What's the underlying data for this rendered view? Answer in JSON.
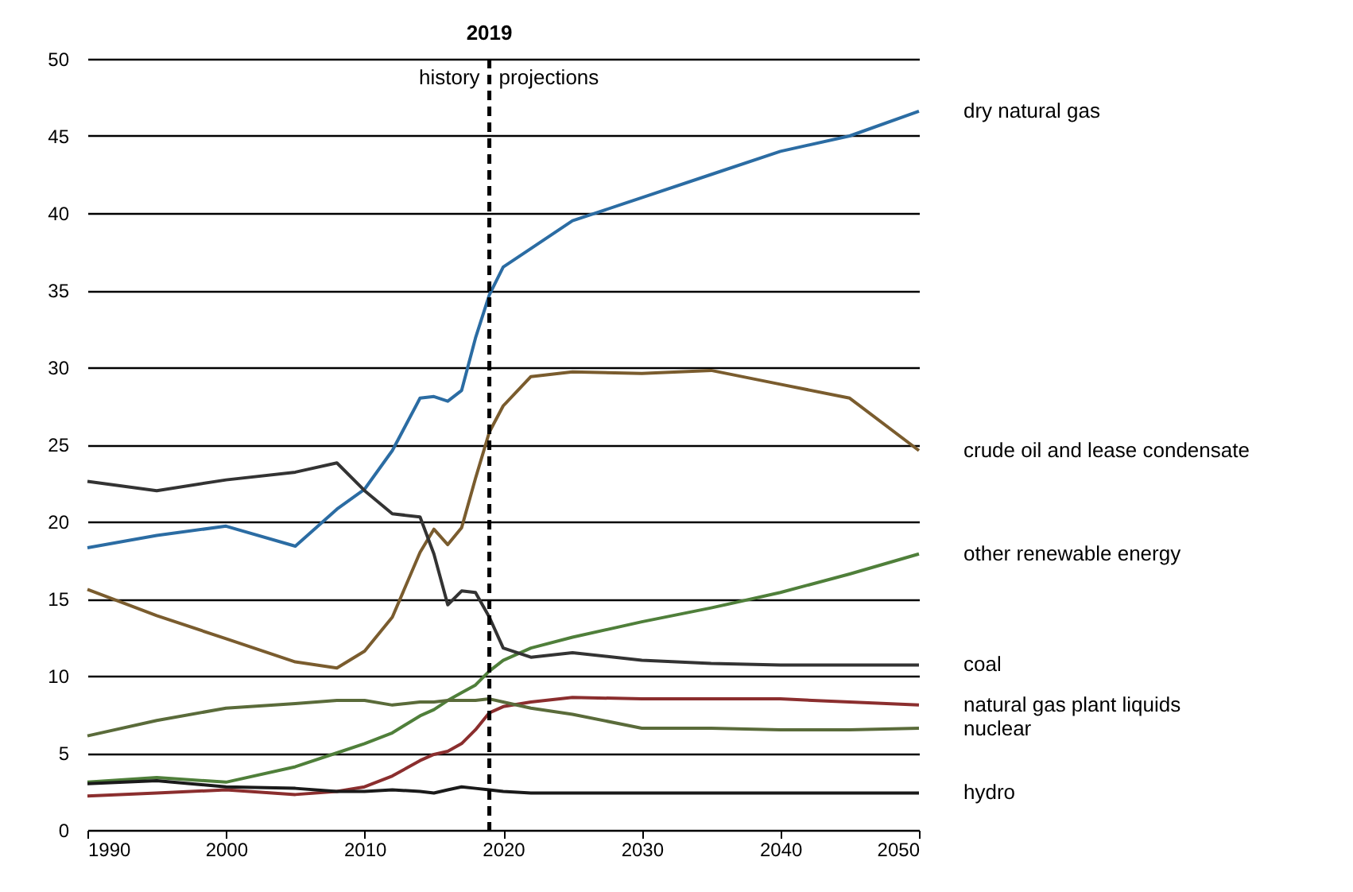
{
  "chart_data": {
    "type": "line",
    "x": [
      1990,
      1995,
      2000,
      2005,
      2008,
      2010,
      2012,
      2014,
      2015,
      2016,
      2017,
      2018,
      2019,
      2020,
      2022,
      2025,
      2030,
      2035,
      2040,
      2045,
      2050
    ],
    "series": [
      {
        "name": "dry natural gas",
        "color": "#2b6ca3",
        "values": [
          18.3,
          19.1,
          19.7,
          18.4,
          20.8,
          22.1,
          24.6,
          28.0,
          28.1,
          27.8,
          28.5,
          31.9,
          34.7,
          36.5,
          37.7,
          39.5,
          41.0,
          42.5,
          44.0,
          45.0,
          46.6
        ]
      },
      {
        "name": "crude oil and lease condensate",
        "color": "#7a5c2e",
        "values": [
          15.6,
          13.9,
          12.4,
          10.9,
          10.5,
          11.6,
          13.8,
          18.0,
          19.5,
          18.5,
          19.6,
          22.8,
          25.8,
          27.5,
          29.4,
          29.7,
          29.6,
          29.8,
          28.9,
          28.0,
          24.6
        ]
      },
      {
        "name": "other renewable energy",
        "color": "#4f7f3a",
        "values": [
          3.1,
          3.4,
          3.1,
          4.1,
          5.0,
          5.6,
          6.3,
          7.4,
          7.8,
          8.4,
          8.9,
          9.4,
          10.3,
          11.0,
          11.8,
          12.5,
          13.5,
          14.4,
          15.4,
          16.6,
          17.9
        ]
      },
      {
        "name": "coal",
        "color": "#333333",
        "values": [
          22.6,
          22.0,
          22.7,
          23.2,
          23.8,
          22.0,
          20.5,
          20.3,
          17.9,
          14.6,
          15.5,
          15.4,
          13.8,
          11.8,
          11.2,
          11.5,
          11.0,
          10.8,
          10.7,
          10.7,
          10.7
        ]
      },
      {
        "name": "natural gas plant liquids",
        "color": "#8b2e2e",
        "values": [
          2.2,
          2.4,
          2.6,
          2.3,
          2.5,
          2.8,
          3.5,
          4.5,
          4.9,
          5.1,
          5.6,
          6.5,
          7.6,
          8.0,
          8.3,
          8.6,
          8.5,
          8.5,
          8.5,
          8.3,
          8.1
        ]
      },
      {
        "name": "nuclear",
        "color": "#5a6b3a",
        "values": [
          6.1,
          7.1,
          7.9,
          8.2,
          8.4,
          8.4,
          8.1,
          8.3,
          8.3,
          8.4,
          8.4,
          8.4,
          8.5,
          8.3,
          7.9,
          7.5,
          6.6,
          6.6,
          6.5,
          6.5,
          6.6
        ]
      },
      {
        "name": "hydro",
        "color": "#1a1a1a",
        "values": [
          3.0,
          3.2,
          2.8,
          2.7,
          2.5,
          2.5,
          2.6,
          2.5,
          2.4,
          2.6,
          2.8,
          2.7,
          2.6,
          2.5,
          2.4,
          2.4,
          2.4,
          2.4,
          2.4,
          2.4,
          2.4
        ]
      }
    ],
    "xlim": [
      1990,
      2050
    ],
    "xticks": [
      1990,
      2000,
      2010,
      2020,
      2030,
      2040,
      2050
    ],
    "ylim": [
      0,
      50
    ],
    "yticks": [
      0,
      5,
      10,
      15,
      20,
      25,
      30,
      35,
      40,
      45,
      50
    ],
    "grid": "y",
    "ref_lines": [
      {
        "axis": "x",
        "value": 2019,
        "label": "2019",
        "line_style": "dashed",
        "color": "#000000"
      }
    ],
    "annotations": [
      "history",
      "projections"
    ]
  }
}
